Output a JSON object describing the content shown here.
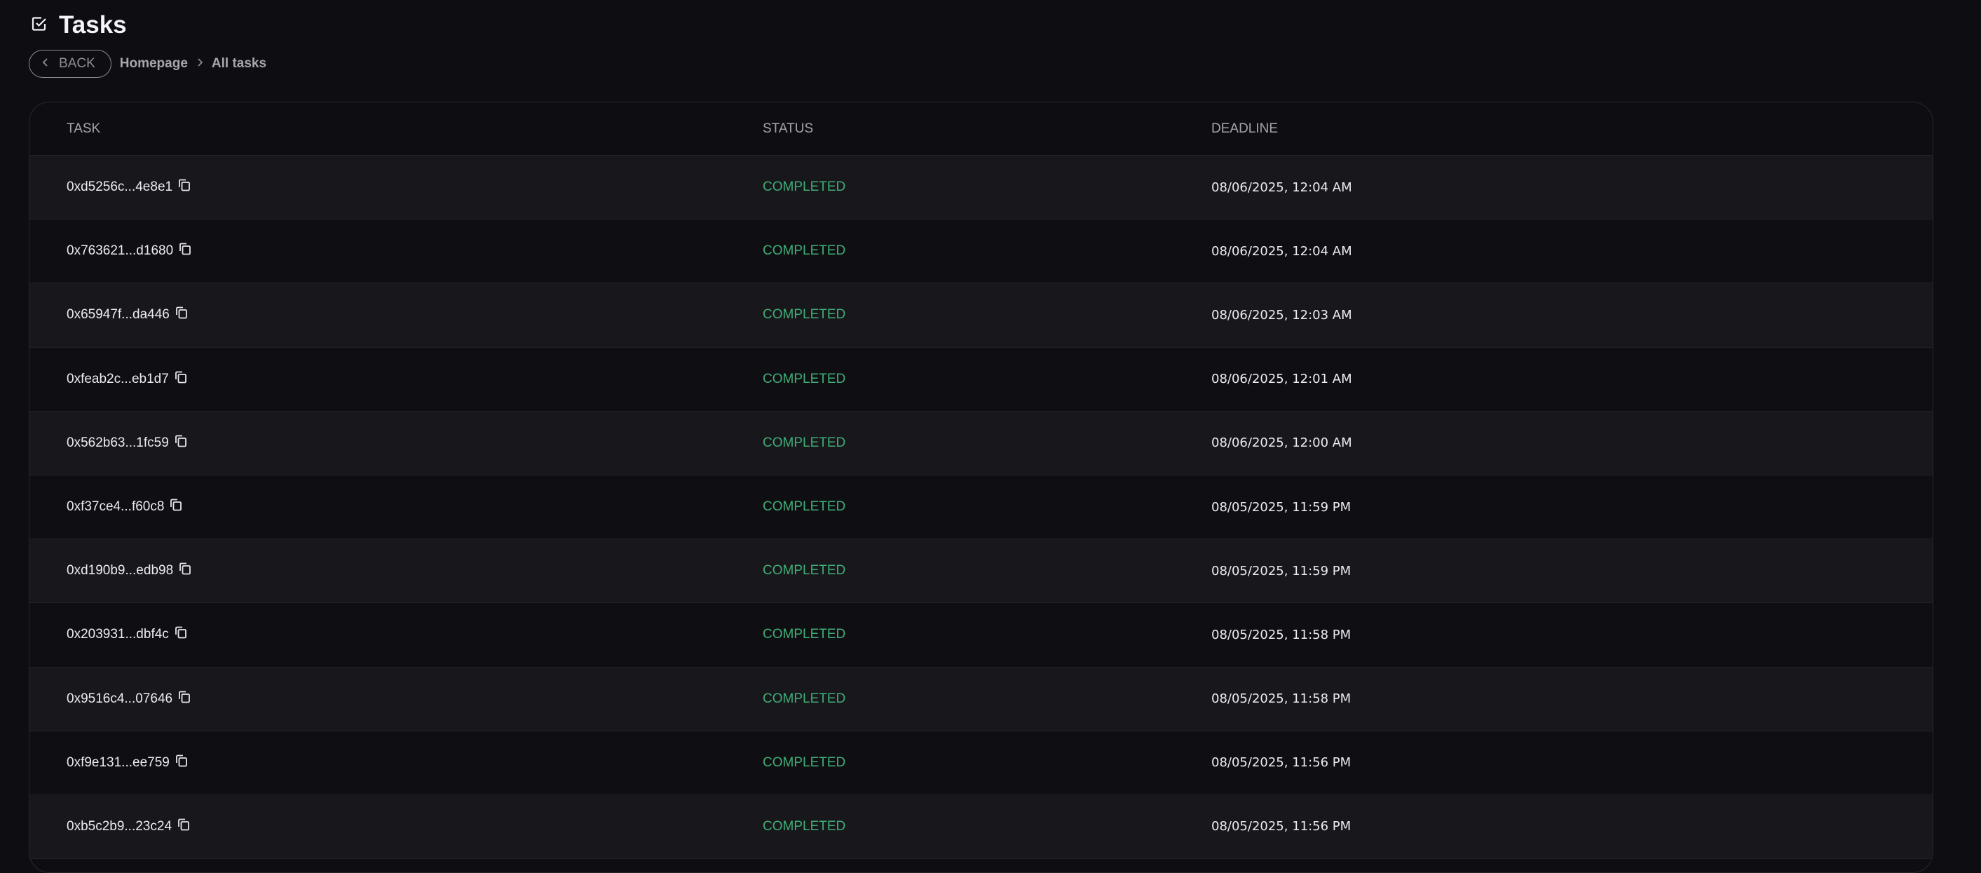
{
  "header": {
    "title": "Tasks",
    "icon": "checkbox-icon"
  },
  "breadcrumb": {
    "back_label": "BACK",
    "items": [
      "Homepage",
      "All tasks"
    ]
  },
  "table": {
    "columns": [
      "TASK",
      "STATUS",
      "DEADLINE"
    ],
    "status_color": "#3fae75",
    "rows": [
      {
        "task": "0xd5256c...4e8e1",
        "status": "COMPLETED",
        "deadline": "08/06/2025, 12:04 AM"
      },
      {
        "task": "0x763621...d1680",
        "status": "COMPLETED",
        "deadline": "08/06/2025, 12:04 AM"
      },
      {
        "task": "0x65947f...da446",
        "status": "COMPLETED",
        "deadline": "08/06/2025, 12:03 AM"
      },
      {
        "task": "0xfeab2c...eb1d7",
        "status": "COMPLETED",
        "deadline": "08/06/2025, 12:01 AM"
      },
      {
        "task": "0x562b63...1fc59",
        "status": "COMPLETED",
        "deadline": "08/06/2025, 12:00 AM"
      },
      {
        "task": "0xf37ce4...f60c8",
        "status": "COMPLETED",
        "deadline": "08/05/2025, 11:59 PM"
      },
      {
        "task": "0xd190b9...edb98",
        "status": "COMPLETED",
        "deadline": "08/05/2025, 11:59 PM"
      },
      {
        "task": "0x203931...dbf4c",
        "status": "COMPLETED",
        "deadline": "08/05/2025, 11:58 PM"
      },
      {
        "task": "0x9516c4...07646",
        "status": "COMPLETED",
        "deadline": "08/05/2025, 11:58 PM"
      },
      {
        "task": "0xf9e131...ee759",
        "status": "COMPLETED",
        "deadline": "08/05/2025, 11:56 PM"
      },
      {
        "task": "0xb5c2b9...23c24",
        "status": "COMPLETED",
        "deadline": "08/05/2025, 11:56 PM"
      }
    ]
  }
}
